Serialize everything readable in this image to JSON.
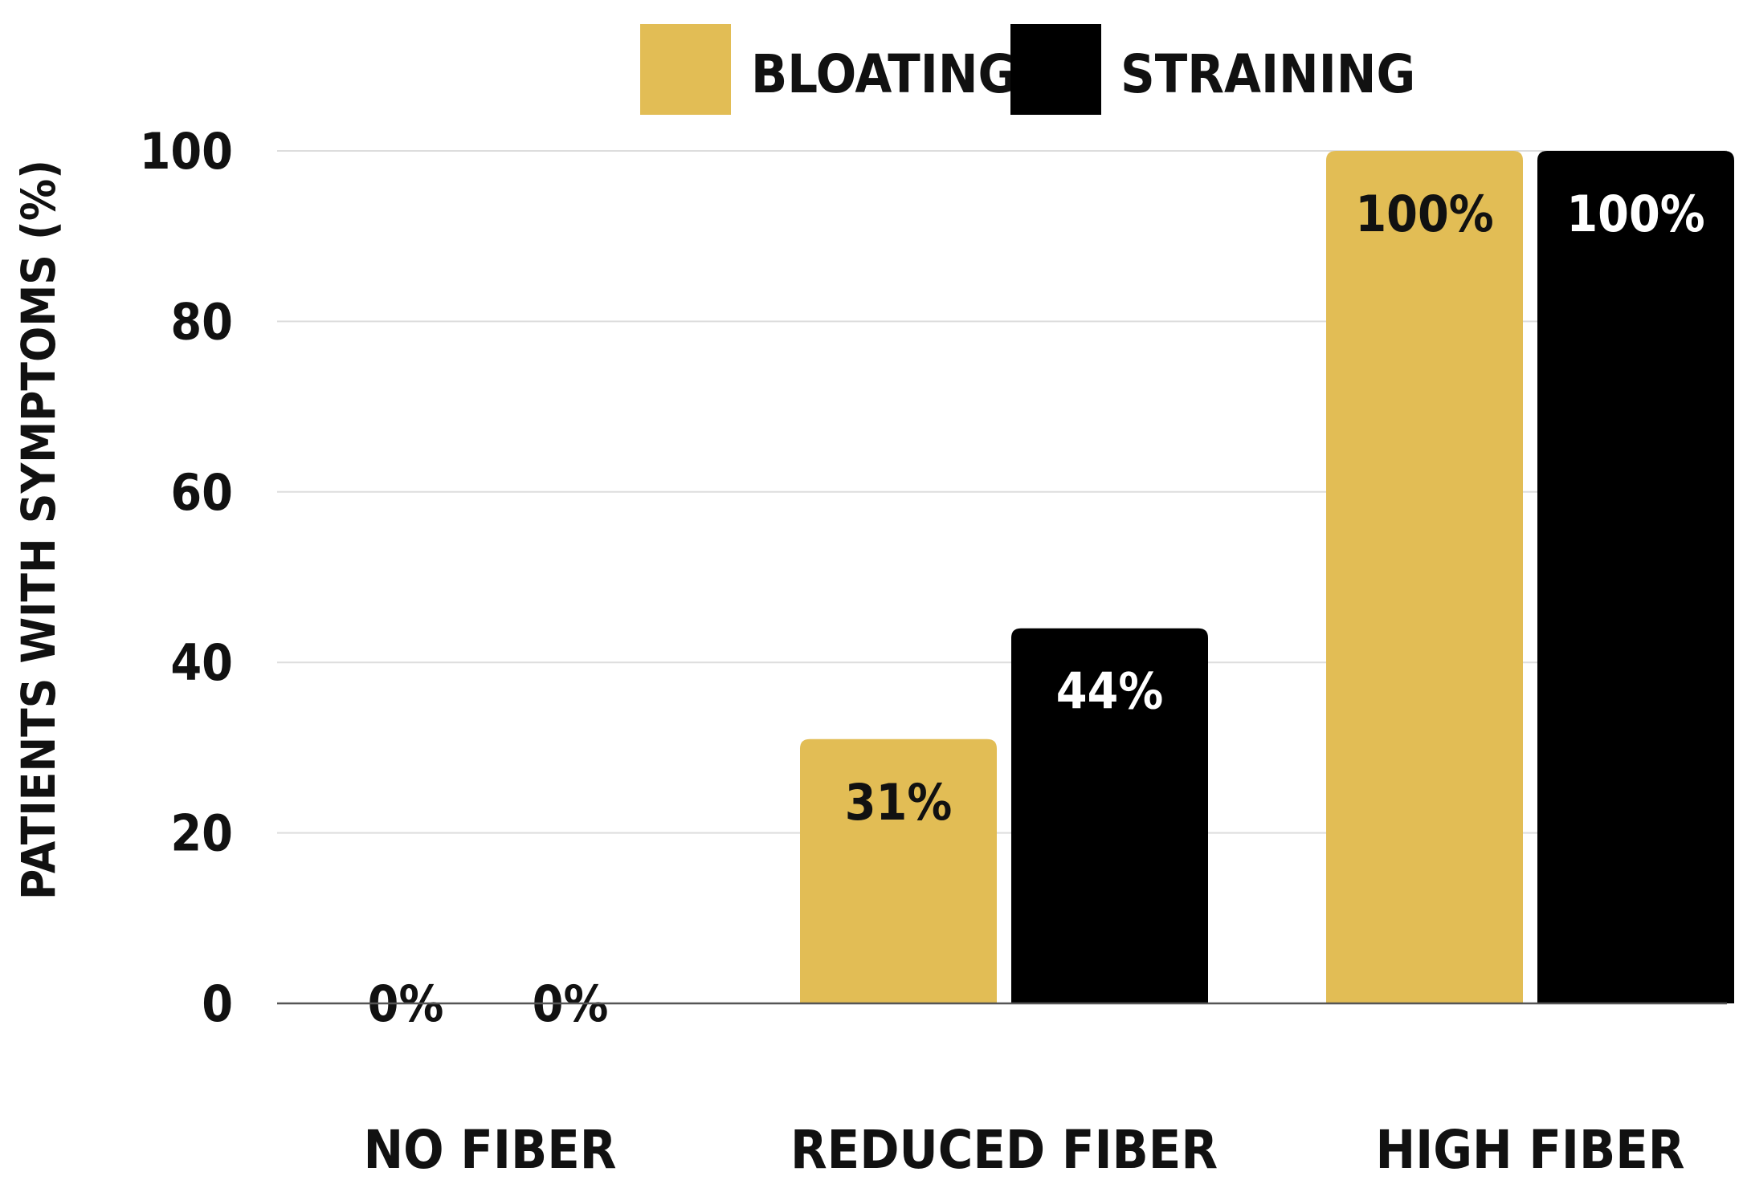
{
  "chart_data": {
    "type": "bar",
    "title": "",
    "xlabel": "",
    "ylabel": "PATIENTS WITH SYMPTOMS (%)",
    "ylim": [
      0,
      100
    ],
    "yticks": [
      "0",
      "20",
      "40",
      "60",
      "80",
      "100"
    ],
    "ytick_values": [
      0,
      20,
      40,
      60,
      80,
      100
    ],
    "grid": true,
    "legend_position": "top-center",
    "categories": [
      "NO FIBER",
      "REDUCED FIBER",
      "HIGH FIBER"
    ],
    "series": [
      {
        "name": "BLOATING",
        "color": "#E2BD55",
        "values": [
          0,
          31,
          100
        ],
        "labels": [
          "0%",
          "31%",
          "100%"
        ],
        "label_color": "#111111"
      },
      {
        "name": "STRAINING",
        "color": "#000000",
        "values": [
          0,
          44,
          100
        ],
        "labels": [
          "0%",
          "44%",
          "100%"
        ],
        "label_color": "#ffffff"
      }
    ]
  }
}
